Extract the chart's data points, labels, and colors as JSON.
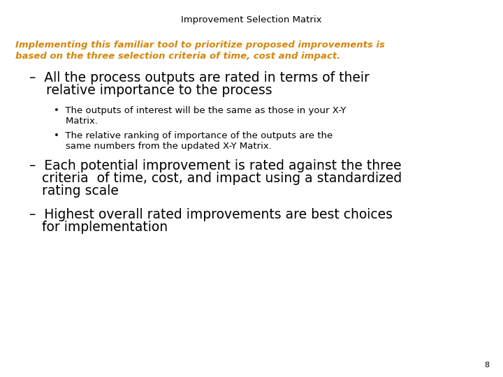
{
  "title": "Improvement Selection Matrix",
  "title_fontsize": 9.5,
  "title_color": "#000000",
  "subtitle_line1": "Implementing this familiar tool to prioritize proposed improvements is",
  "subtitle_line2": "based on the three selection criteria of time, cost and impact.",
  "subtitle_color": "#D4860A",
  "subtitle_fontsize": 9.5,
  "bullet1_line1": "–  All the process outputs are rated in terms of their",
  "bullet1_line2": "    relative importance to the process",
  "bullet1_fontsize": 13.5,
  "sub_bullet1_line1": "•  The outputs of interest will be the same as those in your X-Y",
  "sub_bullet1_line2": "    Matrix.",
  "sub_bullet2_line1": "•  The relative ranking of importance of the outputs are the",
  "sub_bullet2_line2": "    same numbers from the updated X-Y Matrix.",
  "sub_bullet_fontsize": 9.5,
  "bullet2_line1": "–  Each potential improvement is rated against the three",
  "bullet2_line2": "   criteria  of time, cost, and impact using a standardized",
  "bullet2_line3": "   rating scale",
  "bullet2_fontsize": 13.5,
  "bullet3_line1": "–  Highest overall rated improvements are best choices",
  "bullet3_line2": "   for implementation",
  "bullet3_fontsize": 13.5,
  "page_number": "8",
  "background_color": "#ffffff",
  "text_color": "#000000"
}
